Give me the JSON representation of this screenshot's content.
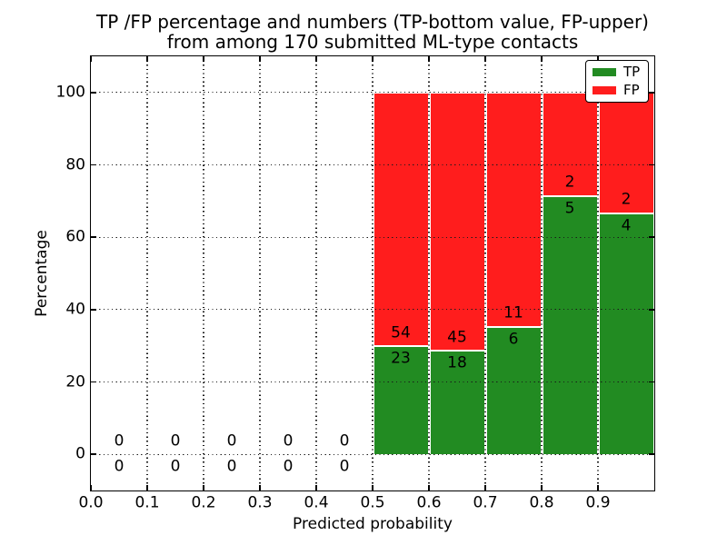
{
  "chart_data": {
    "type": "bar",
    "stacked": true,
    "title": "TP /FP percentage and numbers (TP-bottom value, FP-upper)\nfrom among 170 submitted ML-type contacts",
    "title_line1": "TP /FP percentage and numbers (TP-bottom value, FP-upper)",
    "title_line2": "from among 170 submitted ML-type contacts",
    "xlabel": "Predicted probability",
    "ylabel": "Percentage",
    "xlim": [
      0.0,
      1.0
    ],
    "ylim": [
      -10,
      110
    ],
    "grid": true,
    "grid_style": "dotted",
    "legend_position": "upper right",
    "legend": [
      {
        "label": "TP",
        "color": "#228b22"
      },
      {
        "label": "FP",
        "color": "#ff1d1d"
      }
    ],
    "colors": {
      "tp": "#228b22",
      "fp": "#ff1d1d",
      "segment_edge": "#ffffff",
      "grid": "#1a1a1a",
      "background": "#ffffff"
    },
    "xticks": {
      "values": [
        0.0,
        0.1,
        0.2,
        0.3,
        0.4,
        0.5,
        0.6,
        0.7,
        0.8,
        0.9
      ],
      "labels": [
        "0.0",
        "0.1",
        "0.2",
        "0.3",
        "0.4",
        "0.5",
        "0.6",
        "0.7",
        "0.8",
        "0.9"
      ]
    },
    "yticks": {
      "values": [
        0,
        20,
        40,
        60,
        80,
        100
      ],
      "labels": [
        "0",
        "20",
        "40",
        "60",
        "80",
        "100"
      ]
    },
    "total_contacts": 170,
    "bins": [
      {
        "range": [
          0.0,
          0.1
        ],
        "tp_count": 0,
        "fp_count": 0,
        "tp_pct": 0,
        "fp_pct": 0
      },
      {
        "range": [
          0.1,
          0.2
        ],
        "tp_count": 0,
        "fp_count": 0,
        "tp_pct": 0,
        "fp_pct": 0
      },
      {
        "range": [
          0.2,
          0.3
        ],
        "tp_count": 0,
        "fp_count": 0,
        "tp_pct": 0,
        "fp_pct": 0
      },
      {
        "range": [
          0.3,
          0.4
        ],
        "tp_count": 0,
        "fp_count": 0,
        "tp_pct": 0,
        "fp_pct": 0
      },
      {
        "range": [
          0.4,
          0.5
        ],
        "tp_count": 0,
        "fp_count": 0,
        "tp_pct": 0,
        "fp_pct": 0
      },
      {
        "range": [
          0.5,
          0.6
        ],
        "tp_count": 23,
        "fp_count": 54,
        "tp_pct": 29.87,
        "fp_pct": 70.13
      },
      {
        "range": [
          0.6,
          0.7
        ],
        "tp_count": 18,
        "fp_count": 45,
        "tp_pct": 28.57,
        "fp_pct": 71.43
      },
      {
        "range": [
          0.7,
          0.8
        ],
        "tp_count": 6,
        "fp_count": 11,
        "tp_pct": 35.29,
        "fp_pct": 64.71
      },
      {
        "range": [
          0.8,
          0.9
        ],
        "tp_count": 5,
        "fp_count": 2,
        "tp_pct": 71.43,
        "fp_pct": 28.57
      },
      {
        "range": [
          0.9,
          1.0
        ],
        "tp_count": 4,
        "fp_count": 2,
        "tp_pct": 66.67,
        "fp_pct": 33.33
      }
    ]
  }
}
